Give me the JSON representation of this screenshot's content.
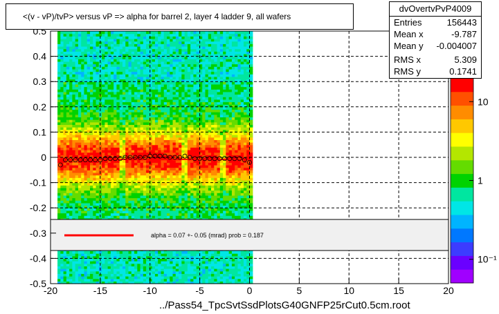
{
  "title": "<(v - vP)/tvP> versus   vP => alpha for barrel 2, layer 4 ladder 9, all wafers",
  "stats": {
    "name": "dvOvertvPvP4009",
    "rows": [
      {
        "label": "Entries",
        "value": "156443"
      },
      {
        "label": "Mean x",
        "value": "-9.787"
      },
      {
        "label": "Mean y",
        "value": "-0.004007"
      },
      {
        "label": "RMS x",
        "value": "5.309"
      },
      {
        "label": "RMS y",
        "value": "0.1741"
      }
    ]
  },
  "fit_legend": "alpha =     0.07 +-  0.05 (mrad) prob = 0.187",
  "footer": "../Pass54_TpcSvtSsdPlotsG40GNFP25rCut0.5cm.root",
  "colors": {
    "fit_line": "#ff0000",
    "grid": "#000000",
    "palette": [
      "#a000ff",
      "#6a00ff",
      "#3c3cff",
      "#0078ff",
      "#00b4ff",
      "#00e6e6",
      "#00e6a0",
      "#00d200",
      "#64dc00",
      "#b4e600",
      "#ffff00",
      "#ffc800",
      "#ff8c00",
      "#ff5000",
      "#ff0000"
    ]
  },
  "chart_data": {
    "type": "heatmap",
    "title": "<(v - vP)/tvP> versus   vP => alpha for barrel 2, layer 4 ladder 9, all wafers",
    "xlabel": "",
    "ylabel": "",
    "xlim": [
      -20,
      20
    ],
    "ylim": [
      -0.5,
      0.5
    ],
    "x_ticks": [
      -20,
      -15,
      -10,
      -5,
      0,
      5,
      10,
      15,
      20
    ],
    "y_ticks": [
      -0.5,
      -0.4,
      -0.3,
      -0.2,
      -0.1,
      0,
      0.1,
      0.2,
      0.3,
      0.4,
      0.5
    ],
    "y_tick_labels": [
      "-0.5",
      "-0.4",
      "-0.3",
      "-0.2",
      "-0.1",
      "0",
      "0.1",
      "0.2",
      "0.3",
      "0.4",
      "0.5"
    ],
    "grid": true,
    "populated_x_range": [
      -19.3,
      0.3
    ],
    "z_scale": "log",
    "z_ticks": [
      {
        "value": 10,
        "label": "10"
      },
      {
        "value": 1,
        "label": "1"
      },
      {
        "value": 0.1,
        "label": "10⁻¹"
      }
    ],
    "profile_points": {
      "x": [
        -19.0,
        -18.5,
        -18.0,
        -17.5,
        -17.0,
        -16.5,
        -16.0,
        -15.5,
        -15.0,
        -14.5,
        -14.0,
        -13.5,
        -13.0,
        -12.5,
        -12.0,
        -11.5,
        -11.0,
        -10.5,
        -10.0,
        -9.5,
        -9.0,
        -8.5,
        -8.0,
        -7.5,
        -7.0,
        -6.5,
        -6.0,
        -5.5,
        -5.0,
        -4.5,
        -4.0,
        -3.5,
        -3.0,
        -2.5,
        -2.0,
        -1.5,
        -1.0,
        -0.5,
        0.0
      ],
      "y": [
        -0.03,
        -0.01,
        -0.01,
        -0.01,
        -0.01,
        -0.01,
        -0.01,
        -0.01,
        -0.01,
        -0.005,
        -0.005,
        -0.005,
        -0.005,
        0.0,
        0.0,
        0.0,
        0.0,
        0.0,
        0.005,
        0.005,
        0.005,
        0.005,
        0.0,
        0.0,
        0.0,
        0.005,
        0.0,
        -0.005,
        -0.005,
        -0.005,
        -0.005,
        -0.005,
        -0.005,
        -0.005,
        -0.005,
        -0.005,
        -0.005,
        -0.01,
        -0.02
      ]
    },
    "fit_line": {
      "x": [
        -19.3,
        0.3
      ],
      "y": [
        -0.008,
        -0.008
      ]
    }
  }
}
